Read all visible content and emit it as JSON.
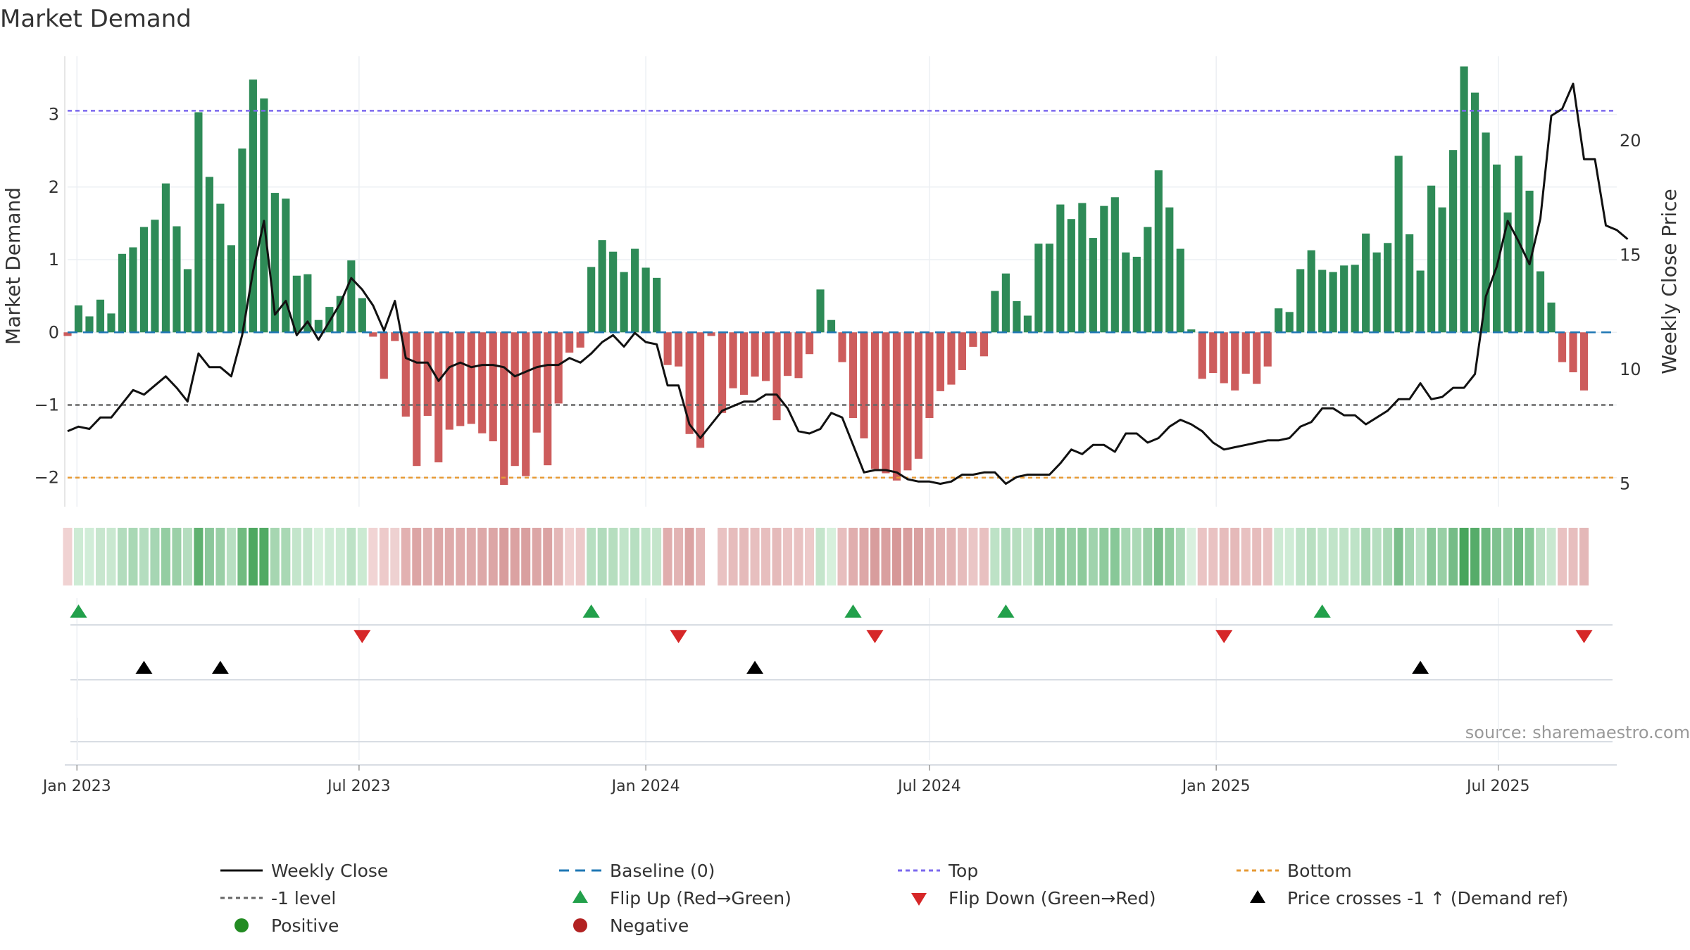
{
  "chart_data": {
    "type": "bar",
    "title": "Market Demand",
    "ylabel": "Market Demand",
    "y2label": "Weekly Close Price",
    "source": "source: sharemaestro.com",
    "ylim": [
      -2.4,
      3.8
    ],
    "y2lim": [
      4.0,
      23.7
    ],
    "yticks": [
      "3",
      "2",
      "1",
      "0",
      "−1",
      "−2"
    ],
    "yticks_values": [
      3,
      2,
      1,
      0,
      -1,
      -2
    ],
    "y2ticks": [
      "20",
      "15",
      "10",
      "5"
    ],
    "y2ticks_values": [
      20,
      15,
      10,
      5
    ],
    "x_start": "2022-12-26",
    "x_end": "2025-09-15",
    "x_step_days": 7,
    "xticks": [
      "Jan 2023",
      "Jul 2023",
      "Jan 2024",
      "Jul 2024",
      "Jan 2025",
      "Jul 2025"
    ],
    "xticks_dates": [
      "2023-01-01",
      "2023-07-01",
      "2024-01-01",
      "2024-07-01",
      "2025-01-01",
      "2025-07-01"
    ],
    "reference_lines": {
      "top": 3.05,
      "bottom": -2.0,
      "minus_one": -1.0,
      "baseline": 0.0
    },
    "colors": {
      "positive": "#2e8b57",
      "negative": "#cd5c5c",
      "price": "#111111",
      "baseline": "#1f77b4",
      "top": "#7b68ee",
      "bottom": "#e69a35",
      "minus_one": "#666666",
      "flip_up": "#22a04b",
      "flip_down": "#d62728",
      "cross": "#000000",
      "dot_positive": "#228b22",
      "dot_negative": "#b22222"
    },
    "series": [
      {
        "name": "Market Demand",
        "values": [
          -0.05,
          0.37,
          0.22,
          0.45,
          0.26,
          1.08,
          1.17,
          1.45,
          1.55,
          2.05,
          1.46,
          0.87,
          3.03,
          2.14,
          1.77,
          1.2,
          2.53,
          3.48,
          3.22,
          1.92,
          1.84,
          0.78,
          0.8,
          0.17,
          0.35,
          0.5,
          0.99,
          0.47,
          -0.06,
          -0.64,
          -0.12,
          -1.16,
          -1.84,
          -1.15,
          -1.79,
          -1.34,
          -1.29,
          -1.26,
          -1.39,
          -1.5,
          -2.1,
          -1.84,
          -1.98,
          -1.38,
          -1.83,
          -0.98,
          -0.28,
          -0.21,
          0.9,
          1.27,
          1.11,
          0.83,
          1.15,
          0.89,
          0.75,
          -0.45,
          -0.47,
          -1.4,
          -1.59,
          -0.05,
          -1.11,
          -0.77,
          -0.86,
          -0.61,
          -0.67,
          -1.21,
          -0.6,
          -0.63,
          -0.3,
          0.59,
          0.17,
          -0.41,
          -1.18,
          -1.46,
          -1.88,
          -1.94,
          -2.04,
          -1.9,
          -1.74,
          -1.18,
          -0.81,
          -0.72,
          -0.52,
          -0.2,
          -0.33,
          0.57,
          0.81,
          0.43,
          0.23,
          1.22,
          1.22,
          1.76,
          1.56,
          1.78,
          1.3,
          1.74,
          1.86,
          1.1,
          1.04,
          1.45,
          2.23,
          1.72,
          1.15,
          0.04,
          -0.64,
          -0.56,
          -0.7,
          -0.8,
          -0.57,
          -0.71,
          -0.47,
          0.33,
          0.28,
          0.87,
          1.13,
          0.86,
          0.83,
          0.92,
          0.93,
          1.36,
          1.1,
          1.23,
          2.43,
          1.35,
          0.85,
          2.02,
          1.72,
          2.51,
          3.66,
          3.3,
          2.75,
          2.31,
          1.65,
          2.43,
          1.95,
          0.84,
          0.41,
          -0.41,
          -0.55,
          -0.8
        ]
      },
      {
        "name": "Weekly Close",
        "values": [
          7.3,
          7.5,
          7.4,
          7.9,
          7.9,
          8.5,
          9.1,
          8.9,
          9.3,
          9.7,
          9.2,
          8.6,
          10.7,
          10.1,
          10.1,
          9.7,
          11.5,
          14.3,
          16.5,
          12.4,
          13.0,
          11.5,
          12.1,
          11.3,
          12.1,
          12.9,
          14.0,
          13.5,
          12.8,
          11.7,
          13.0,
          10.5,
          10.3,
          10.3,
          9.5,
          10.1,
          10.3,
          10.1,
          10.2,
          10.2,
          10.1,
          9.7,
          9.9,
          10.1,
          10.2,
          10.2,
          10.5,
          10.3,
          10.7,
          11.2,
          11.5,
          11.0,
          11.6,
          11.2,
          11.1,
          9.3,
          9.3,
          7.6,
          7.0,
          7.6,
          8.2,
          8.4,
          8.6,
          8.6,
          8.9,
          8.9,
          8.3,
          7.3,
          7.2,
          7.4,
          8.1,
          7.9,
          6.7,
          5.5,
          5.6,
          5.6,
          5.5,
          5.2,
          5.1,
          5.1,
          5.0,
          5.1,
          5.4,
          5.4,
          5.5,
          5.5,
          5.0,
          5.3,
          5.4,
          5.4,
          5.4,
          5.9,
          6.5,
          6.3,
          6.7,
          6.7,
          6.4,
          7.2,
          7.2,
          6.8,
          7.0,
          7.5,
          7.8,
          7.6,
          7.3,
          6.8,
          6.5,
          6.6,
          6.7,
          6.8,
          6.9,
          6.9,
          7.0,
          7.5,
          7.7,
          8.3,
          8.3,
          8.0,
          8.0,
          7.6,
          7.9,
          8.2,
          8.7,
          8.7,
          9.4,
          8.7,
          8.8,
          9.2,
          9.2,
          9.8,
          13.2,
          14.5,
          16.5,
          15.6,
          14.6,
          16.6,
          21.1,
          21.4,
          22.5,
          19.2,
          19.2,
          16.3,
          16.1,
          15.7
        ]
      }
    ],
    "demand_strip_colors": [
      "#f0d2d2",
      "#cdebd4",
      "#d1edd8",
      "#c7e6ce",
      "#c9e8d0",
      "#b2dcbd",
      "#a9d8b5",
      "#b4ddbf",
      "#a6d6b3",
      "#94cda2",
      "#9bd0a8",
      "#b5ddbf",
      "#5fb170",
      "#8bc79b",
      "#99cfa6",
      "#b8dfc2",
      "#71bb80",
      "#4ea861",
      "#51aa64",
      "#a6d6b1",
      "#a9d8b4",
      "#c3e5cb",
      "#c5e6cd",
      "#d7f0dc",
      "#cfecd6",
      "#cdebd4",
      "#bde2c6",
      "#cbead2",
      "#f1d4d4",
      "#edcaca",
      "#eed1d1",
      "#e2b1b1",
      "#dca5a5",
      "#e0afaf",
      "#dda7a7",
      "#deaaaa",
      "#dfabab",
      "#dfacac",
      "#dda8a8",
      "#dca6a6",
      "#d89c9c",
      "#dba2a2",
      "#d99f9f",
      "#dca6a6",
      "#dba3a3",
      "#e4b7b7",
      "#f0d0d0",
      "#edcaca",
      "#b7dfc1",
      "#b1dbbc",
      "#b6debf",
      "#c1e4c9",
      "#b7dfc1",
      "#c0e4c9",
      "#c4e5cb",
      "#e0adad",
      "#e2b3b3",
      "#dba3a3",
      "#e4b6b6",
      "#ffffff",
      "#e9c2c2",
      "#e6bcbc",
      "#e5baba",
      "#e7bfbf",
      "#e7bebe",
      "#e5baba",
      "#eac3c3",
      "#e9c2c2",
      "#edcaca",
      "#c4e5cb",
      "#d7f0dc",
      "#e7bebe",
      "#e0aeae",
      "#dda7a7",
      "#d89d9d",
      "#d99f9f",
      "#d69797",
      "#d89d9d",
      "#d9a0a0",
      "#deabab",
      "#e1b1b1",
      "#e3b5b5",
      "#e6bcbc",
      "#eac6c6",
      "#e8c0c0",
      "#bde2c6",
      "#afdabb",
      "#b6debf",
      "#c3e5cb",
      "#a0d3ad",
      "#a0d3ad",
      "#8ecb9d",
      "#96cea4",
      "#8dca9b",
      "#a0d3ad",
      "#8fcb9d",
      "#88c898",
      "#a7d7b3",
      "#abd9b6",
      "#9bd0a8",
      "#7bbe8b",
      "#8fcb9d",
      "#aad8b5",
      "#d9f0de",
      "#eac4c4",
      "#e9c2c2",
      "#e6bcbc",
      "#e5b9b9",
      "#e8c1c1",
      "#e6bcbc",
      "#e9c2c2",
      "#cdebd4",
      "#cfecd6",
      "#c0e4c9",
      "#b8dfc1",
      "#c0e4c9",
      "#c1e4c9",
      "#bfe3c7",
      "#bee3c7",
      "#a6d6b2",
      "#b6dec0",
      "#aad8b5",
      "#7bbe8b",
      "#a1d4ae",
      "#b9e0c3",
      "#8cc99b",
      "#98cfa5",
      "#76bc87",
      "#48a55c",
      "#56ac69",
      "#6db97f",
      "#7fc18f",
      "#8ecb9d",
      "#72bb83",
      "#87c897",
      "#b8dfc1",
      "#c9e8d0",
      "#e9c2c2",
      "#e7bebe",
      "#e4b8b8"
    ],
    "events": {
      "flip_up": [
        "2023-01-02",
        "2023-11-27",
        "2024-05-13",
        "2024-08-19",
        "2025-03-10"
      ],
      "flip_down": [
        "2023-07-03",
        "2024-01-22",
        "2024-05-27",
        "2025-01-06",
        "2025-08-25"
      ],
      "price_crosses_minus_one_up": [
        "2023-02-13",
        "2023-04-03",
        "2024-03-11",
        "2025-05-12"
      ]
    },
    "legend": [
      [
        "Weekly Close",
        "Baseline (0)",
        "Top",
        "Bottom"
      ],
      [
        "-1 level",
        "Flip Up (Red→Green)",
        "Flip Down (Green→Red)",
        "Price crosses -1 ↑ (Demand ref)"
      ],
      [
        "Positive",
        "Negative"
      ]
    ],
    "legend_placement": "bottom"
  }
}
